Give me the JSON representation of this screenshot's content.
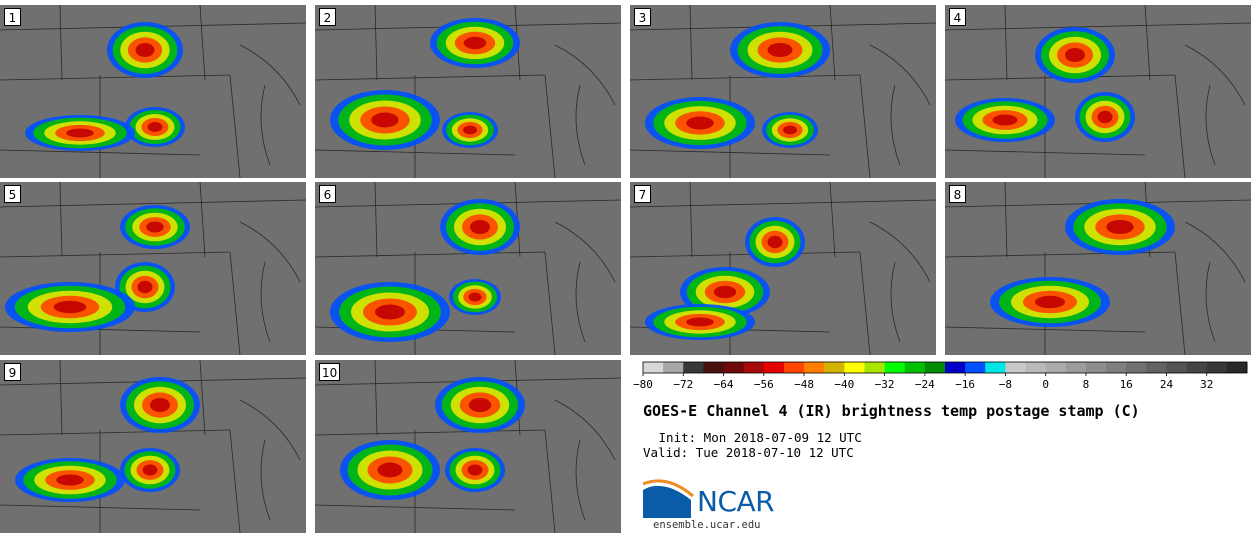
{
  "figure": {
    "title": "GOES-E Channel 4 (IR) brightness temp postage stamp (C)",
    "init": " Init: Mon 2018-07-09 12 UTC",
    "valid": "Valid: Tue 2018-07-10 12 UTC",
    "logo_text": "NCAR",
    "logo_url": "ensemble.ucar.edu"
  },
  "chart_data": {
    "type": "heatmap",
    "title": "GOES-E Channel 4 (IR) brightness temp postage stamp (C)",
    "units": "C",
    "panel_labels": [
      "1",
      "2",
      "3",
      "4",
      "5",
      "6",
      "7",
      "8",
      "9",
      "10"
    ],
    "colorbar": {
      "range": [
        -80,
        40
      ],
      "tick_values": [
        -80,
        -72,
        -64,
        -56,
        -48,
        -40,
        -32,
        -24,
        -16,
        -8,
        0,
        8,
        16,
        24,
        32
      ],
      "tick_labels": [
        "−80",
        "−72",
        "−64",
        "−56",
        "−48",
        "−40",
        "−32",
        "−24",
        "−16",
        "−8",
        "0",
        "8",
        "16",
        "24",
        "32"
      ],
      "colors": [
        "#d7d7d7",
        "#a8a8a8",
        "#383838",
        "#4a1010",
        "#6e0a0a",
        "#a80a0a",
        "#e60000",
        "#ff4500",
        "#ff7f00",
        "#d4b400",
        "#ffff00",
        "#a8e600",
        "#00ff00",
        "#00c000",
        "#008c00",
        "#0000c8",
        "#0050ff",
        "#00e6e6",
        "#c8c8c8",
        "#b9b9b9",
        "#ababab",
        "#9c9c9c",
        "#8e8e8e",
        "#7f7f7f",
        "#717171",
        "#626262",
        "#545454",
        "#454545",
        "#373737",
        "#282828"
      ]
    }
  }
}
